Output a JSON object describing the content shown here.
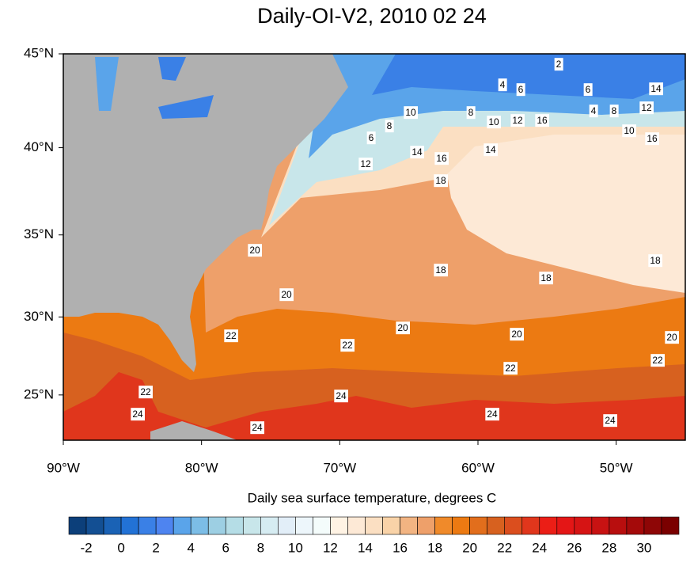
{
  "chart_data": {
    "type": "contour-map",
    "title": "Daily-OI-V2, 2010 02 24",
    "colorbar_label": "Daily sea surface temperature, degrees C",
    "xlim": [
      -90,
      -45
    ],
    "ylim": [
      22,
      45
    ],
    "xticks": [
      {
        "value": -90,
        "label": "90°W"
      },
      {
        "value": -80,
        "label": "80°W"
      },
      {
        "value": -70,
        "label": "70°W"
      },
      {
        "value": -60,
        "label": "60°W"
      },
      {
        "value": -50,
        "label": "50°W"
      }
    ],
    "yticks": [
      {
        "value": 25,
        "label": "25°N"
      },
      {
        "value": 30,
        "label": "30°N"
      },
      {
        "value": 35,
        "label": "35°N"
      },
      {
        "value": 40,
        "label": "40°N"
      },
      {
        "value": 45,
        "label": "45°N"
      }
    ],
    "levels": [
      -2,
      -1,
      0,
      1,
      2,
      3,
      4,
      5,
      6,
      7,
      8,
      9,
      10,
      11,
      12,
      13,
      14,
      15,
      16,
      17,
      18,
      19,
      20,
      21,
      22,
      23,
      24,
      25,
      26,
      27,
      28,
      29,
      30,
      31
    ],
    "colors": [
      "#0c3f7a",
      "#134f93",
      "#1a62b5",
      "#2272d6",
      "#3a80e6",
      "#4e84f0",
      "#5aa4ea",
      "#7cbde6",
      "#9dcfe3",
      "#b5dde6",
      "#c8e6ea",
      "#d6ecf2",
      "#e2eef8",
      "#edf6fb",
      "#f4fcfb",
      "#fff3e4",
      "#fde9d6",
      "#fbdfc2",
      "#f9d3a8",
      "#f2b482",
      "#eea06a",
      "#f08a2a",
      "#ec7a12",
      "#e26e1c",
      "#d7611f",
      "#db4e1e",
      "#e0361c",
      "#eb1e16",
      "#e41616",
      "#d61414",
      "#c81212",
      "#b80e0e",
      "#a40a0a",
      "#8e0606",
      "#7a0000"
    ],
    "contour_labels": [
      2,
      4,
      6,
      6,
      14,
      10,
      8,
      4,
      8,
      12,
      10,
      12,
      16,
      8,
      10,
      6,
      16,
      14,
      14,
      16,
      12,
      18,
      20,
      18,
      18,
      18,
      20,
      20,
      20,
      20,
      22,
      22,
      22,
      22,
      22,
      24,
      24,
      24,
      24,
      24
    ]
  }
}
